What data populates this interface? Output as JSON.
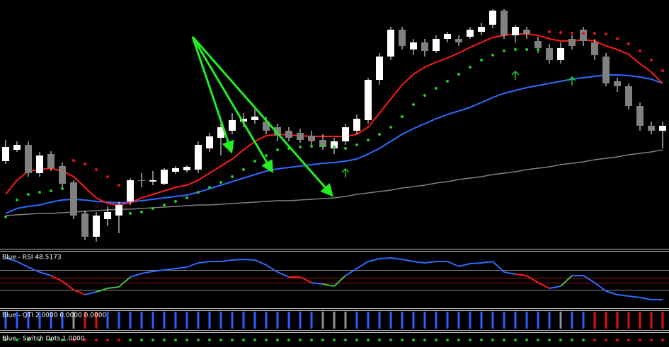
{
  "chart_data": [
    {
      "type": "candlestick",
      "up_color": "#ffffff",
      "down_color": "#808080",
      "ylim": [
        0,
        350
      ],
      "open": [
        122,
        138,
        145,
        105,
        132,
        115,
        92,
        48,
        15,
        40,
        45,
        65,
        95,
        93,
        90,
        107,
        109,
        110,
        140,
        155,
        165,
        178,
        180,
        178,
        170,
        165,
        162,
        158,
        152,
        140,
        150,
        165,
        180,
        237,
        270,
        308,
        280,
        290,
        278,
        295,
        295,
        298,
        305,
        315,
        335,
        300,
        308,
        292,
        282,
        265,
        295,
        308,
        290,
        270,
        235,
        228,
        200,
        172,
        165
      ],
      "high": [
        152,
        150,
        150,
        135,
        136,
        120,
        95,
        52,
        50,
        58,
        65,
        98,
        105,
        108,
        112,
        115,
        116,
        150,
        162,
        178,
        190,
        190,
        195,
        185,
        175,
        170,
        168,
        165,
        160,
        155,
        175,
        188,
        240,
        275,
        312,
        312,
        295,
        295,
        300,
        305,
        300,
        312,
        318,
        337,
        337,
        315,
        312,
        298,
        288,
        290,
        300,
        312,
        295,
        275,
        240,
        232,
        205,
        178,
        178
      ],
      "low": [
        118,
        135,
        100,
        100,
        108,
        85,
        40,
        10,
        8,
        30,
        20,
        60,
        85,
        88,
        88,
        104,
        106,
        105,
        135,
        130,
        160,
        170,
        175,
        160,
        150,
        150,
        148,
        145,
        138,
        132,
        145,
        160,
        175,
        230,
        265,
        280,
        272,
        270,
        275,
        290,
        285,
        295,
        300,
        310,
        295,
        290,
        295,
        275,
        260,
        260,
        280,
        285,
        265,
        228,
        220,
        195,
        165,
        160,
        140
      ],
      "close": [
        142,
        145,
        105,
        130,
        112,
        90,
        45,
        15,
        45,
        50,
        60,
        95,
        94,
        95,
        110,
        112,
        114,
        145,
        157,
        170,
        180,
        182,
        185,
        165,
        158,
        155,
        152,
        150,
        142,
        150,
        170,
        182,
        237,
        270,
        308,
        285,
        290,
        278,
        295,
        302,
        290,
        308,
        312,
        335,
        300,
        312,
        302,
        282,
        265,
        282,
        285,
        292,
        272,
        232,
        228,
        200,
        172,
        165,
        172
      ],
      "series": [
        {
          "style": "line",
          "color": "#808080",
          "values": [
            45,
            46,
            47,
            48,
            48,
            49,
            50,
            51,
            52,
            53,
            54,
            54,
            55,
            56,
            57,
            58,
            59,
            60,
            60,
            61,
            62,
            63,
            64,
            65,
            66,
            66,
            67,
            68,
            69,
            70,
            72,
            75,
            77,
            79,
            81,
            84,
            86,
            88,
            91,
            93,
            96,
            98,
            100,
            103,
            105,
            107,
            110,
            112,
            114,
            117,
            119,
            121,
            124,
            126,
            128,
            131,
            133,
            135,
            138
          ]
        },
        {
          "style": "line",
          "color": "#2f6bff",
          "values": [
            48,
            55,
            58,
            60,
            64,
            67,
            68,
            67,
            65,
            64,
            63,
            64,
            66,
            68,
            70,
            72,
            74,
            78,
            83,
            88,
            93,
            98,
            103,
            108,
            111,
            113,
            115,
            117,
            119,
            120,
            122,
            125,
            132,
            140,
            150,
            160,
            168,
            175,
            182,
            188,
            193,
            198,
            205,
            212,
            218,
            222,
            226,
            229,
            232,
            235,
            238,
            240,
            242,
            244,
            244,
            243,
            241,
            238,
            232
          ]
        },
        {
          "style": "line",
          "color": "#ff1a1a",
          "values": [
            75,
            95,
            108,
            110,
            112,
            108,
            100,
            85,
            70,
            62,
            60,
            63,
            70,
            75,
            80,
            85,
            88,
            95,
            105,
            115,
            125,
            138,
            150,
            158,
            160,
            159,
            158,
            157,
            157,
            157,
            157,
            160,
            170,
            190,
            210,
            230,
            245,
            255,
            262,
            268,
            275,
            283,
            290,
            297,
            300,
            302,
            302,
            300,
            295,
            292,
            292,
            294,
            292,
            285,
            280,
            273,
            260,
            248,
            232
          ]
        },
        {
          "style": "dots",
          "color": "#22cc22",
          "values": [
            43,
            67,
            75,
            78,
            80,
            83,
            null,
            null,
            null,
            null,
            null,
            48,
            50,
            55,
            60,
            65,
            70,
            78,
            85,
            92,
            100,
            110,
            122,
            130,
            138,
            140,
            142,
            143,
            144,
            142,
            140,
            145,
            152,
            160,
            170,
            185,
            202,
            215,
            225,
            235,
            245,
            255,
            265,
            272,
            278,
            280,
            280,
            280,
            null,
            null,
            null,
            null,
            null,
            null,
            null,
            null,
            null,
            null,
            null
          ]
        },
        {
          "style": "dots",
          "color": "#ee1111",
          "values": [
            null,
            null,
            null,
            null,
            null,
            null,
            123,
            118,
            110,
            100,
            88,
            null,
            null,
            null,
            null,
            null,
            null,
            null,
            null,
            null,
            null,
            null,
            null,
            null,
            null,
            null,
            null,
            null,
            null,
            null,
            null,
            null,
            null,
            null,
            null,
            null,
            null,
            null,
            null,
            null,
            null,
            null,
            null,
            null,
            null,
            null,
            null,
            null,
            305,
            304,
            303,
            303,
            303,
            302,
            295,
            288,
            278,
            265,
            250
          ]
        },
        {
          "style": "arrow",
          "color": "#22cc22",
          "values": [
            null,
            null,
            null,
            null,
            null,
            null,
            null,
            null,
            null,
            null,
            null,
            null,
            null,
            null,
            null,
            null,
            null,
            null,
            null,
            null,
            null,
            null,
            null,
            null,
            null,
            null,
            null,
            null,
            null,
            null,
            105,
            null,
            null,
            null,
            null,
            null,
            null,
            null,
            null,
            null,
            null,
            null,
            null,
            null,
            null,
            243,
            null,
            null,
            null,
            null,
            235,
            null,
            null,
            null,
            null,
            null,
            null,
            null,
            null
          ]
        }
      ]
    },
    {
      "type": "line",
      "title": "Blue - RSI 48.5173",
      "ylim": [
        0,
        80
      ],
      "values": [
        70,
        65,
        57,
        50,
        45,
        37,
        25,
        18,
        22,
        27,
        29,
        43,
        48,
        51,
        53,
        55,
        57,
        63,
        65,
        65,
        67,
        68,
        67,
        60,
        50,
        43,
        43,
        35,
        33,
        30,
        45,
        55,
        65,
        69,
        70,
        68,
        65,
        63,
        65,
        65,
        58,
        62,
        63,
        65,
        50,
        47,
        45,
        35,
        27,
        30,
        45,
        45,
        35,
        23,
        18,
        16,
        14,
        11,
        11
      ],
      "colors": [
        "#2f6bff",
        "#2f6bff",
        "#2f6bff",
        "#2f6bff",
        "#2f6bff",
        "#ff1a1a",
        "#ff1a1a",
        "#ff1a1a",
        "#2f6bff",
        "#40c040",
        "#40c040",
        "#40c040",
        "#2f6bff",
        "#2f6bff",
        "#2f6bff",
        "#2f6bff",
        "#2f6bff",
        "#2f6bff",
        "#2f6bff",
        "#2f6bff",
        "#2f6bff",
        "#2f6bff",
        "#2f6bff",
        "#2f6bff",
        "#2f6bff",
        "#2f6bff",
        "#ff1a1a",
        "#ff1a1a",
        "#2f6bff",
        "#40c040",
        "#40c040",
        "#2f6bff",
        "#2f6bff",
        "#2f6bff",
        "#2f6bff",
        "#2f6bff",
        "#2f6bff",
        "#2f6bff",
        "#2f6bff",
        "#2f6bff",
        "#2f6bff",
        "#2f6bff",
        "#2f6bff",
        "#2f6bff",
        "#2f6bff",
        "#2f6bff",
        "#ff1a1a",
        "#ff1a1a",
        "#ff1a1a",
        "#2f6bff",
        "#40c040",
        "#2f6bff",
        "#2f6bff",
        "#2f6bff",
        "#2f6bff",
        "#2f6bff",
        "#2f6bff",
        "#2f6bff",
        "#2f6bff"
      ]
    },
    {
      "type": "bars",
      "title": "Blue - QTI 2.0000 0.0000 0.0000",
      "colors": [
        "#2f5cff",
        "#2f5cff",
        "#2f5cff",
        "#2f5cff",
        "#2f5cff",
        "#2f5cff",
        "#909090",
        "#e01010",
        "#e01010",
        "#2f5cff",
        "#2f5cff",
        "#2f5cff",
        "#2f5cff",
        "#2f5cff",
        "#2f5cff",
        "#2f5cff",
        "#2f5cff",
        "#2f5cff",
        "#2f5cff",
        "#2f5cff",
        "#2f5cff",
        "#2f5cff",
        "#2f5cff",
        "#2f5cff",
        "#2f5cff",
        "#2f5cff",
        "#2f5cff",
        "#2f5cff",
        "#909090",
        "#909090",
        "#909090",
        "#2f5cff",
        "#2f5cff",
        "#2f5cff",
        "#2f5cff",
        "#2f5cff",
        "#2f5cff",
        "#2f5cff",
        "#2f5cff",
        "#2f5cff",
        "#2f5cff",
        "#2f5cff",
        "#2f5cff",
        "#2f5cff",
        "#2f5cff",
        "#2f5cff",
        "#2f5cff",
        "#2f5cff",
        "#2f5cff",
        "#909090",
        "#2f5cff",
        "#2f5cff",
        "#e01010",
        "#e01010",
        "#e01010",
        "#e01010",
        "#e01010",
        "#e01010",
        "#e01010"
      ]
    },
    {
      "type": "dots",
      "title": "Blue - Switch Dots 1.0000",
      "colors": [
        "#20c020",
        "#20c020",
        "#20c020",
        "#20c020",
        "#20c020",
        "#20c020",
        "#e01010",
        "#e01010",
        "#e01010",
        "#e01010",
        "#e01010",
        "#20c020",
        "#20c020",
        "#20c020",
        "#20c020",
        "#20c020",
        "#20c020",
        "#20c020",
        "#20c020",
        "#20c020",
        "#20c020",
        "#20c020",
        "#20c020",
        "#20c020",
        "#20c020",
        "#20c020",
        "#20c020",
        "#20c020",
        "#20c020",
        "#20c020",
        "#20c020",
        "#20c020",
        "#20c020",
        "#20c020",
        "#20c020",
        "#20c020",
        "#20c020",
        "#20c020",
        "#20c020",
        "#20c020",
        "#20c020",
        "#20c020",
        "#20c020",
        "#20c020",
        "#20c020",
        "#20c020",
        "#20c020",
        "#20c020",
        "#20c020",
        "#20c020",
        "#20c020",
        "#20c020",
        "#e01010",
        "#e01010",
        "#e01010",
        "#e01010",
        "#e01010",
        "#e01010",
        "#e01010"
      ]
    }
  ]
}
